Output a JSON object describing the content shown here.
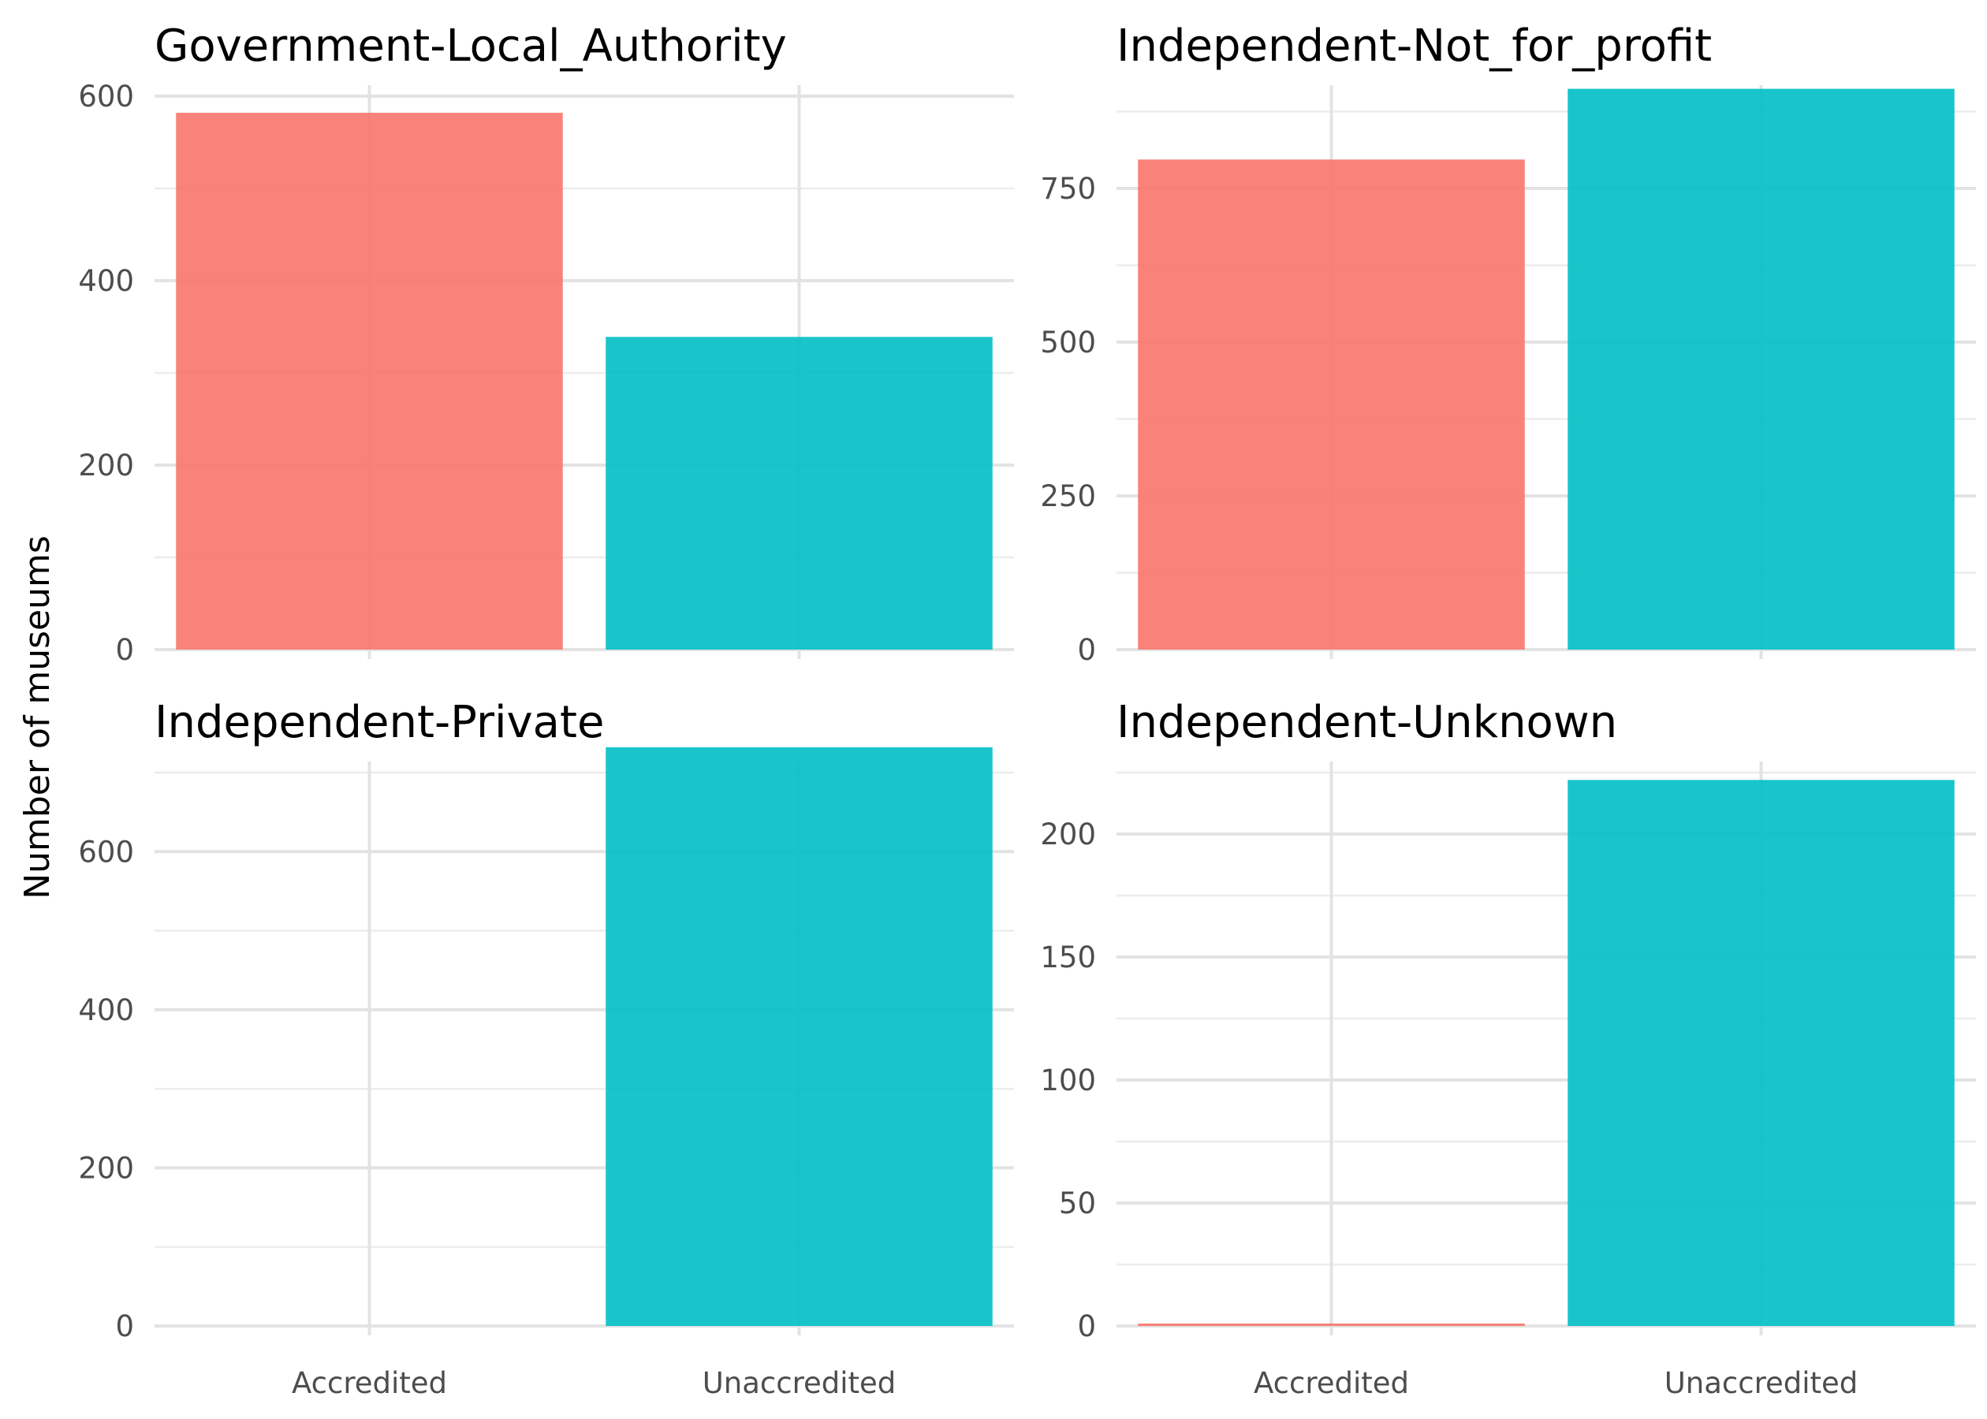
{
  "chart_data": {
    "type": "bar",
    "ylabel": "Number of museums",
    "xlabel": "",
    "categories": [
      "Accredited",
      "Unaccredited"
    ],
    "colors": {
      "Accredited": "#F8766D",
      "Unaccredited": "#00BFC4"
    },
    "grid": true,
    "legend": "none",
    "facets": [
      {
        "title": "Government-Local_Authority",
        "values": [
          582,
          339
        ],
        "ylim": [
          0,
          600
        ],
        "yticks": [
          0,
          200,
          400,
          600
        ],
        "ytick_labels": [
          "0",
          "200",
          "400",
          "600"
        ],
        "show_xticks": false
      },
      {
        "title": "Independent-Not_for_profit",
        "values": [
          797,
          912
        ],
        "ylim": [
          0,
          900
        ],
        "yticks": [
          0,
          250,
          500,
          750
        ],
        "ytick_labels": [
          "0",
          "250",
          "500",
          "750"
        ],
        "show_xticks": false
      },
      {
        "title": "Independent-Private",
        "values": [
          0,
          732
        ],
        "ylim": [
          0,
          700
        ],
        "yticks": [
          0,
          200,
          400,
          600
        ],
        "ytick_labels": [
          "0",
          "200",
          "400",
          "600"
        ],
        "show_xticks": true
      },
      {
        "title": "Independent-Unknown",
        "values": [
          1,
          222
        ],
        "ylim": [
          0,
          225
        ],
        "yticks": [
          0,
          50,
          100,
          150,
          200
        ],
        "ytick_labels": [
          "0",
          "50",
          "100",
          "150",
          "200"
        ],
        "show_xticks": true
      }
    ]
  }
}
